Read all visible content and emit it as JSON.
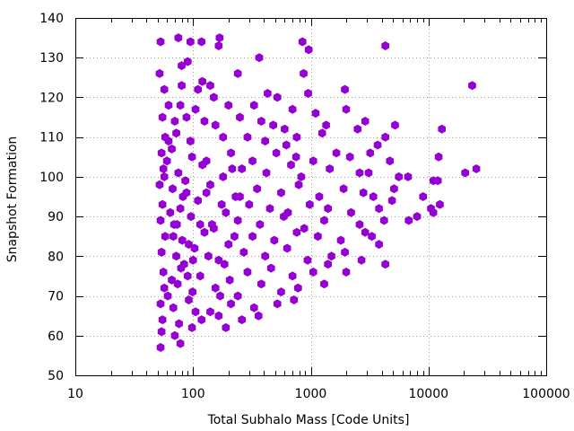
{
  "chart_data": {
    "type": "scatter",
    "title": "",
    "xlabel": "Total Subhalo Mass [Code Units]",
    "ylabel": "Snapshot Formation",
    "xscale": "log",
    "xlim": [
      10,
      100000
    ],
    "ylim": [
      50,
      140
    ],
    "x_tick_values": [
      10,
      100,
      1000,
      10000,
      100000
    ],
    "x_tick_labels": [
      "10",
      "100",
      "1000",
      "10000",
      "100000"
    ],
    "y_tick_values": [
      50,
      60,
      70,
      80,
      90,
      100,
      110,
      120,
      130,
      140
    ],
    "y_tick_labels": [
      "50",
      "60",
      "70",
      "80",
      "90",
      "100",
      "110",
      "120",
      "130",
      "140"
    ],
    "grid": true,
    "legend": "none",
    "marker": "hexagon",
    "point_color": "#9400d3",
    "series": [
      {
        "points": [
          [
            53,
            134
          ],
          [
            75,
            135
          ],
          [
            95,
            134
          ],
          [
            118,
            134
          ],
          [
            168,
            135
          ],
          [
            165,
            133
          ],
          [
            365,
            130
          ],
          [
            850,
            134
          ],
          [
            960,
            132
          ],
          [
            4300,
            133
          ],
          [
            80,
            128
          ],
          [
            90,
            129
          ],
          [
            52,
            126
          ],
          [
            240,
            126
          ],
          [
            870,
            126
          ],
          [
            120,
            124
          ],
          [
            140,
            123
          ],
          [
            80,
            123
          ],
          [
            1950,
            122
          ],
          [
            23500,
            123
          ],
          [
            57,
            122
          ],
          [
            110,
            122
          ],
          [
            150,
            120
          ],
          [
            430,
            121
          ],
          [
            520,
            120
          ],
          [
            950,
            121
          ],
          [
            62,
            118
          ],
          [
            78,
            118
          ],
          [
            105,
            117
          ],
          [
            200,
            118
          ],
          [
            330,
            118
          ],
          [
            700,
            117
          ],
          [
            2000,
            117
          ],
          [
            1100,
            116
          ],
          [
            55,
            115
          ],
          [
            70,
            114
          ],
          [
            88,
            115
          ],
          [
            125,
            114
          ],
          [
            155,
            113
          ],
          [
            250,
            115
          ],
          [
            380,
            114
          ],
          [
            480,
            113
          ],
          [
            600,
            112
          ],
          [
            1350,
            113
          ],
          [
            2900,
            114
          ],
          [
            5200,
            113
          ],
          [
            13000,
            112
          ],
          [
            58,
            110
          ],
          [
            72,
            111
          ],
          [
            95,
            109
          ],
          [
            180,
            110
          ],
          [
            290,
            110
          ],
          [
            410,
            109
          ],
          [
            620,
            108
          ],
          [
            760,
            110
          ],
          [
            1250,
            111
          ],
          [
            2500,
            112
          ],
          [
            4300,
            110
          ],
          [
            3700,
            108
          ],
          [
            12200,
            105
          ],
          [
            54,
            106
          ],
          [
            66,
            107
          ],
          [
            98,
            105
          ],
          [
            130,
            104
          ],
          [
            210,
            106
          ],
          [
            320,
            104
          ],
          [
            510,
            106
          ],
          [
            750,
            105
          ],
          [
            1050,
            104
          ],
          [
            1650,
            106
          ],
          [
            2150,
            105
          ],
          [
            3200,
            106
          ],
          [
            4700,
            104
          ],
          [
            56,
            102
          ],
          [
            75,
            101
          ],
          [
            120,
            103
          ],
          [
            180,
            100
          ],
          [
            260,
            102
          ],
          [
            420,
            101
          ],
          [
            680,
            103
          ],
          [
            830,
            100
          ],
          [
            1450,
            102
          ],
          [
            2600,
            101
          ],
          [
            3100,
            101
          ],
          [
            5600,
            100
          ],
          [
            6700,
            100
          ],
          [
            20500,
            101
          ],
          [
            25500,
            102
          ],
          [
            11000,
            99
          ],
          [
            12000,
            99
          ],
          [
            52,
            98
          ],
          [
            67,
            97
          ],
          [
            88,
            96
          ],
          [
            140,
            98
          ],
          [
            230,
            95
          ],
          [
            350,
            97
          ],
          [
            560,
            96
          ],
          [
            790,
            98
          ],
          [
            1180,
            95
          ],
          [
            1900,
            97
          ],
          [
            2800,
            96
          ],
          [
            3400,
            95
          ],
          [
            5100,
            97
          ],
          [
            9000,
            95
          ],
          [
            55,
            93
          ],
          [
            78,
            92
          ],
          [
            110,
            94
          ],
          [
            190,
            91
          ],
          [
            300,
            93
          ],
          [
            450,
            92
          ],
          [
            640,
            91
          ],
          [
            980,
            93
          ],
          [
            1400,
            92
          ],
          [
            2200,
            91
          ],
          [
            3800,
            92
          ],
          [
            4900,
            94
          ],
          [
            10500,
            92
          ],
          [
            11000,
            91
          ],
          [
            12500,
            93
          ],
          [
            53,
            89
          ],
          [
            69,
            88
          ],
          [
            96,
            90
          ],
          [
            150,
            87
          ],
          [
            240,
            89
          ],
          [
            370,
            88
          ],
          [
            590,
            90
          ],
          [
            880,
            87
          ],
          [
            1300,
            89
          ],
          [
            2600,
            88
          ],
          [
            4200,
            89
          ],
          [
            6800,
            89
          ],
          [
            8000,
            90
          ],
          [
            58,
            85
          ],
          [
            81,
            84
          ],
          [
            125,
            86
          ],
          [
            200,
            83
          ],
          [
            320,
            85
          ],
          [
            490,
            84
          ],
          [
            760,
            86
          ],
          [
            1150,
            85
          ],
          [
            1800,
            84
          ],
          [
            2900,
            86
          ],
          [
            3300,
            85
          ],
          [
            54,
            81
          ],
          [
            72,
            80
          ],
          [
            103,
            82
          ],
          [
            165,
            79
          ],
          [
            270,
            81
          ],
          [
            410,
            80
          ],
          [
            630,
            82
          ],
          [
            940,
            79
          ],
          [
            1500,
            80
          ],
          [
            1950,
            81
          ],
          [
            3800,
            83
          ],
          [
            2700,
            79
          ],
          [
            56,
            76
          ],
          [
            79,
            77
          ],
          [
            115,
            75
          ],
          [
            185,
            78
          ],
          [
            290,
            76
          ],
          [
            460,
            77
          ],
          [
            700,
            75
          ],
          [
            1050,
            76
          ],
          [
            1400,
            78
          ],
          [
            2000,
            76
          ],
          [
            4300,
            78
          ],
          [
            57,
            72
          ],
          [
            74,
            73
          ],
          [
            99,
            71
          ],
          [
            155,
            72
          ],
          [
            240,
            70
          ],
          [
            380,
            73
          ],
          [
            560,
            71
          ],
          [
            780,
            72
          ],
          [
            1300,
            73
          ],
          [
            53,
            68
          ],
          [
            68,
            67
          ],
          [
            92,
            69
          ],
          [
            140,
            66
          ],
          [
            210,
            68
          ],
          [
            330,
            67
          ],
          [
            520,
            68
          ],
          [
            720,
            69
          ],
          [
            55,
            64
          ],
          [
            76,
            63
          ],
          [
            118,
            64
          ],
          [
            165,
            65
          ],
          [
            260,
            64
          ],
          [
            360,
            65
          ],
          [
            54,
            61
          ],
          [
            70,
            60
          ],
          [
            98,
            62
          ],
          [
            190,
            62
          ],
          [
            53,
            57
          ],
          [
            78,
            58
          ],
          [
            60,
            104
          ],
          [
            86,
            99
          ],
          [
            64,
            91
          ],
          [
            92,
            83
          ],
          [
            66,
            74
          ],
          [
            100,
            79
          ],
          [
            105,
            66
          ],
          [
            130,
            96
          ],
          [
            145,
            88
          ],
          [
            170,
            70
          ],
          [
            215,
            102
          ],
          [
            175,
            93
          ],
          [
            225,
            85
          ],
          [
            205,
            74
          ],
          [
            250,
            95
          ],
          [
            62,
            109
          ],
          [
            82,
            95
          ],
          [
            68,
            85
          ],
          [
            84,
            78
          ],
          [
            61,
            70
          ],
          [
            73,
            88
          ],
          [
            57,
            100
          ],
          [
            90,
            75
          ],
          [
            115,
            88
          ],
          [
            135,
            80
          ]
        ]
      }
    ]
  }
}
